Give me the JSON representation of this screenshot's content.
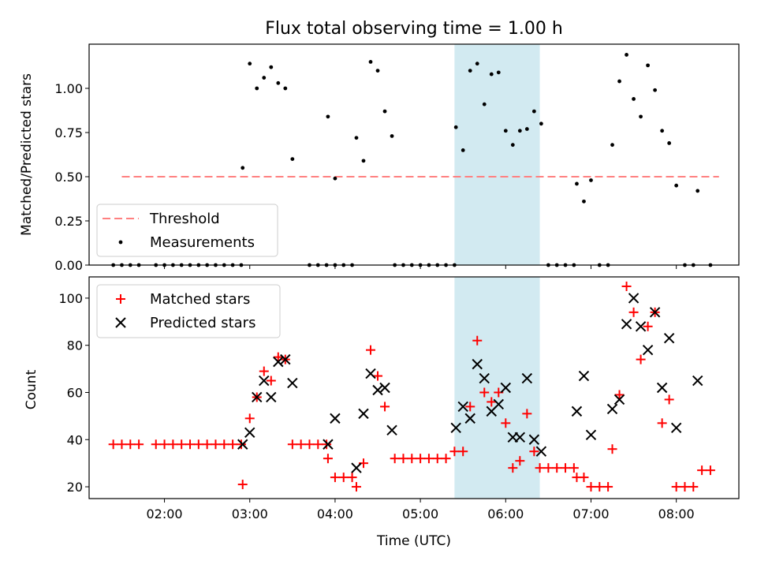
{
  "chart_data": [
    {
      "type": "scatter",
      "title": "Flux total observing time = 1.00 h",
      "xlabel": "",
      "ylabel": "Matched/Predicted stars",
      "xlim": [
        "01:07",
        "08:44"
      ],
      "ylim": [
        0,
        1.25
      ],
      "y_ticks": [
        "0.00",
        "0.25",
        "0.50",
        "0.75",
        "1.00"
      ],
      "highlight_span": {
        "from": "05:24",
        "to": "06:24",
        "color": "#add8e6"
      },
      "legend": {
        "position": "lower-left",
        "entries": [
          "Threshold",
          "Measurements"
        ]
      },
      "series": [
        {
          "name": "Threshold",
          "style": "dashed-line",
          "color": "#ff8080",
          "points": [
            [
              "01:30",
              0.5
            ],
            [
              "08:30",
              0.5
            ]
          ]
        },
        {
          "name": "Measurements",
          "style": "dot",
          "color": "#000000",
          "points": [
            [
              "01:24",
              0.0
            ],
            [
              "01:30",
              0.0
            ],
            [
              "01:36",
              0.0
            ],
            [
              "01:42",
              0.0
            ],
            [
              "01:54",
              0.0
            ],
            [
              "02:00",
              0.0
            ],
            [
              "02:06",
              0.0
            ],
            [
              "02:12",
              0.0
            ],
            [
              "02:18",
              0.0
            ],
            [
              "02:24",
              0.0
            ],
            [
              "02:30",
              0.0
            ],
            [
              "02:36",
              0.0
            ],
            [
              "02:42",
              0.0
            ],
            [
              "02:48",
              0.0
            ],
            [
              "02:54",
              0.0
            ],
            [
              "02:55",
              0.55
            ],
            [
              "03:00",
              1.14
            ],
            [
              "03:05",
              1.0
            ],
            [
              "03:10",
              1.06
            ],
            [
              "03:15",
              1.12
            ],
            [
              "03:20",
              1.03
            ],
            [
              "03:25",
              1.0
            ],
            [
              "03:30",
              0.6
            ],
            [
              "03:42",
              0.0
            ],
            [
              "03:48",
              0.0
            ],
            [
              "03:54",
              0.0
            ],
            [
              "04:00",
              0.0
            ],
            [
              "03:55",
              0.84
            ],
            [
              "04:00",
              0.49
            ],
            [
              "04:06",
              0.0
            ],
            [
              "04:12",
              0.0
            ],
            [
              "04:15",
              0.72
            ],
            [
              "04:20",
              0.59
            ],
            [
              "04:25",
              1.15
            ],
            [
              "04:30",
              1.1
            ],
            [
              "04:35",
              0.87
            ],
            [
              "04:40",
              0.73
            ],
            [
              "04:42",
              0.0
            ],
            [
              "04:48",
              0.0
            ],
            [
              "04:54",
              0.0
            ],
            [
              "05:00",
              0.0
            ],
            [
              "05:06",
              0.0
            ],
            [
              "05:12",
              0.0
            ],
            [
              "05:18",
              0.0
            ],
            [
              "05:24",
              0.0
            ],
            [
              "05:25",
              0.78
            ],
            [
              "05:30",
              0.65
            ],
            [
              "05:35",
              1.1
            ],
            [
              "05:40",
              1.14
            ],
            [
              "05:45",
              0.91
            ],
            [
              "05:50",
              1.08
            ],
            [
              "05:55",
              1.09
            ],
            [
              "06:00",
              0.76
            ],
            [
              "06:05",
              0.68
            ],
            [
              "06:10",
              0.76
            ],
            [
              "06:15",
              0.77
            ],
            [
              "06:20",
              0.87
            ],
            [
              "06:25",
              0.8
            ],
            [
              "06:30",
              0.0
            ],
            [
              "06:36",
              0.0
            ],
            [
              "06:42",
              0.0
            ],
            [
              "06:48",
              0.0
            ],
            [
              "06:50",
              0.46
            ],
            [
              "06:55",
              0.36
            ],
            [
              "07:00",
              0.48
            ],
            [
              "07:06",
              0.0
            ],
            [
              "07:12",
              0.0
            ],
            [
              "07:15",
              0.68
            ],
            [
              "07:20",
              1.04
            ],
            [
              "07:25",
              1.19
            ],
            [
              "07:30",
              0.94
            ],
            [
              "07:35",
              0.84
            ],
            [
              "07:40",
              1.13
            ],
            [
              "07:45",
              0.99
            ],
            [
              "07:50",
              0.76
            ],
            [
              "07:55",
              0.69
            ],
            [
              "08:00",
              0.45
            ],
            [
              "08:06",
              0.0
            ],
            [
              "08:12",
              0.0
            ],
            [
              "08:15",
              0.42
            ],
            [
              "08:24",
              0.0
            ]
          ]
        }
      ]
    },
    {
      "type": "scatter",
      "title": "",
      "xlabel": "Time (UTC)",
      "ylabel": "Count",
      "xlim": [
        "01:07",
        "08:44"
      ],
      "ylim": [
        15,
        109
      ],
      "x_ticks": [
        "02:00",
        "03:00",
        "04:00",
        "05:00",
        "06:00",
        "07:00",
        "08:00"
      ],
      "y_ticks": [
        "20",
        "40",
        "60",
        "80",
        "100"
      ],
      "highlight_span": {
        "from": "05:24",
        "to": "06:24",
        "color": "#add8e6"
      },
      "legend": {
        "position": "upper-left",
        "entries": [
          "Matched stars",
          "Predicted stars"
        ]
      },
      "series": [
        {
          "name": "Matched stars",
          "style": "plus",
          "color": "#ff0000",
          "points": [
            [
              "01:24",
              38
            ],
            [
              "01:30",
              38
            ],
            [
              "01:36",
              38
            ],
            [
              "01:42",
              38
            ],
            [
              "01:54",
              38
            ],
            [
              "02:00",
              38
            ],
            [
              "02:06",
              38
            ],
            [
              "02:12",
              38
            ],
            [
              "02:18",
              38
            ],
            [
              "02:24",
              38
            ],
            [
              "02:30",
              38
            ],
            [
              "02:36",
              38
            ],
            [
              "02:42",
              38
            ],
            [
              "02:48",
              38
            ],
            [
              "02:54",
              38
            ],
            [
              "02:55",
              21
            ],
            [
              "03:00",
              49
            ],
            [
              "03:05",
              58
            ],
            [
              "03:10",
              69
            ],
            [
              "03:15",
              65
            ],
            [
              "03:20",
              75
            ],
            [
              "03:25",
              74
            ],
            [
              "03:30",
              38
            ],
            [
              "03:36",
              38
            ],
            [
              "03:42",
              38
            ],
            [
              "03:48",
              38
            ],
            [
              "03:54",
              38
            ],
            [
              "03:55",
              32
            ],
            [
              "04:00",
              24
            ],
            [
              "04:06",
              24
            ],
            [
              "04:12",
              24
            ],
            [
              "04:15",
              20
            ],
            [
              "04:20",
              30
            ],
            [
              "04:25",
              78
            ],
            [
              "04:30",
              67
            ],
            [
              "04:35",
              54
            ],
            [
              "04:42",
              32
            ],
            [
              "04:48",
              32
            ],
            [
              "04:54",
              32
            ],
            [
              "05:00",
              32
            ],
            [
              "05:06",
              32
            ],
            [
              "05:12",
              32
            ],
            [
              "05:18",
              32
            ],
            [
              "05:24",
              35
            ],
            [
              "05:30",
              35
            ],
            [
              "05:35",
              54
            ],
            [
              "05:40",
              82
            ],
            [
              "05:45",
              60
            ],
            [
              "05:50",
              56
            ],
            [
              "05:55",
              60
            ],
            [
              "06:00",
              47
            ],
            [
              "06:05",
              28
            ],
            [
              "06:10",
              31
            ],
            [
              "06:15",
              51
            ],
            [
              "06:20",
              35
            ],
            [
              "06:24",
              28
            ],
            [
              "06:30",
              28
            ],
            [
              "06:36",
              28
            ],
            [
              "06:42",
              28
            ],
            [
              "06:48",
              28
            ],
            [
              "06:50",
              24
            ],
            [
              "06:55",
              24
            ],
            [
              "07:00",
              20
            ],
            [
              "07:06",
              20
            ],
            [
              "07:12",
              20
            ],
            [
              "07:15",
              36
            ],
            [
              "07:20",
              59
            ],
            [
              "07:25",
              105
            ],
            [
              "07:30",
              94
            ],
            [
              "07:35",
              74
            ],
            [
              "07:40",
              88
            ],
            [
              "07:45",
              94
            ],
            [
              "07:50",
              47
            ],
            [
              "07:55",
              57
            ],
            [
              "08:00",
              20
            ],
            [
              "08:06",
              20
            ],
            [
              "08:12",
              20
            ],
            [
              "08:18",
              27
            ],
            [
              "08:24",
              27
            ]
          ]
        },
        {
          "name": "Predicted stars",
          "style": "cross",
          "color": "#000000",
          "points": [
            [
              "02:55",
              38
            ],
            [
              "03:00",
              43
            ],
            [
              "03:05",
              58
            ],
            [
              "03:10",
              65
            ],
            [
              "03:15",
              58
            ],
            [
              "03:20",
              73
            ],
            [
              "03:25",
              74
            ],
            [
              "03:30",
              64
            ],
            [
              "03:55",
              38
            ],
            [
              "04:00",
              49
            ],
            [
              "04:15",
              28
            ],
            [
              "04:20",
              51
            ],
            [
              "04:25",
              68
            ],
            [
              "04:30",
              61
            ],
            [
              "04:35",
              62
            ],
            [
              "04:40",
              44
            ],
            [
              "05:25",
              45
            ],
            [
              "05:30",
              54
            ],
            [
              "05:35",
              49
            ],
            [
              "05:40",
              72
            ],
            [
              "05:45",
              66
            ],
            [
              "05:50",
              52
            ],
            [
              "05:55",
              55
            ],
            [
              "06:00",
              62
            ],
            [
              "06:05",
              41
            ],
            [
              "06:10",
              41
            ],
            [
              "06:15",
              66
            ],
            [
              "06:20",
              40
            ],
            [
              "06:25",
              35
            ],
            [
              "06:50",
              52
            ],
            [
              "06:55",
              67
            ],
            [
              "07:00",
              42
            ],
            [
              "07:15",
              53
            ],
            [
              "07:20",
              57
            ],
            [
              "07:25",
              89
            ],
            [
              "07:30",
              100
            ],
            [
              "07:35",
              88
            ],
            [
              "07:40",
              78
            ],
            [
              "07:45",
              94
            ],
            [
              "07:50",
              62
            ],
            [
              "07:55",
              83
            ],
            [
              "08:00",
              45
            ],
            [
              "08:15",
              65
            ]
          ]
        }
      ]
    }
  ]
}
